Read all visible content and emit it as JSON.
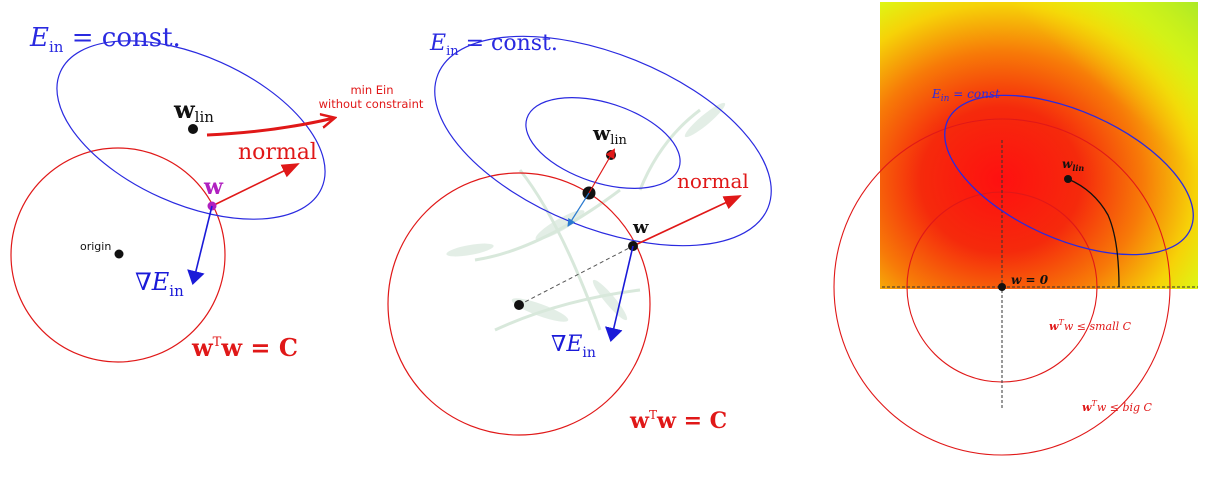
{
  "colors": {
    "blue": "#2a2ae0",
    "red": "#e01818",
    "purple": "#b020c0",
    "black": "#111111",
    "heat_low": "#f4ff10",
    "heat_high": "#ff1a10",
    "bamboo": "#cfe3d3"
  },
  "panel1": {
    "ein_label": "E",
    "ein_sub": "in",
    "ein_rest": " = const.",
    "wlin_label": "w",
    "wlin_sub": "lin",
    "annotation_line1": "min Ein",
    "annotation_line2": "without constraint",
    "normal_label": "normal",
    "w_label": "w",
    "origin_label": "origin",
    "grad_label": "∇E",
    "grad_sub": "in",
    "constraint_label": "w",
    "constraint_sup": "T",
    "constraint_rest": "w = C"
  },
  "panel2": {
    "ein_label": "E",
    "ein_sub": "in",
    "ein_rest": " = const.",
    "wlin_label": "w",
    "wlin_sub": "lin",
    "normal_label": "normal",
    "w_label": "w",
    "grad_label": "∇E",
    "grad_sub": "in",
    "constraint_label": "w",
    "constraint_sup": "T",
    "constraint_rest": "w = C"
  },
  "panel3": {
    "ein_label": "E",
    "ein_sub": "in",
    "ein_rest": " = const",
    "wlin_label": "w",
    "wlin_sub": "lin",
    "origin_label": "w = 0",
    "small_label_w": "w",
    "small_label_sup": "T",
    "small_label_rest": "w ≤ small C",
    "big_label_w": "w",
    "big_label_sup": "T",
    "big_label_rest": "w ≤ big C"
  }
}
